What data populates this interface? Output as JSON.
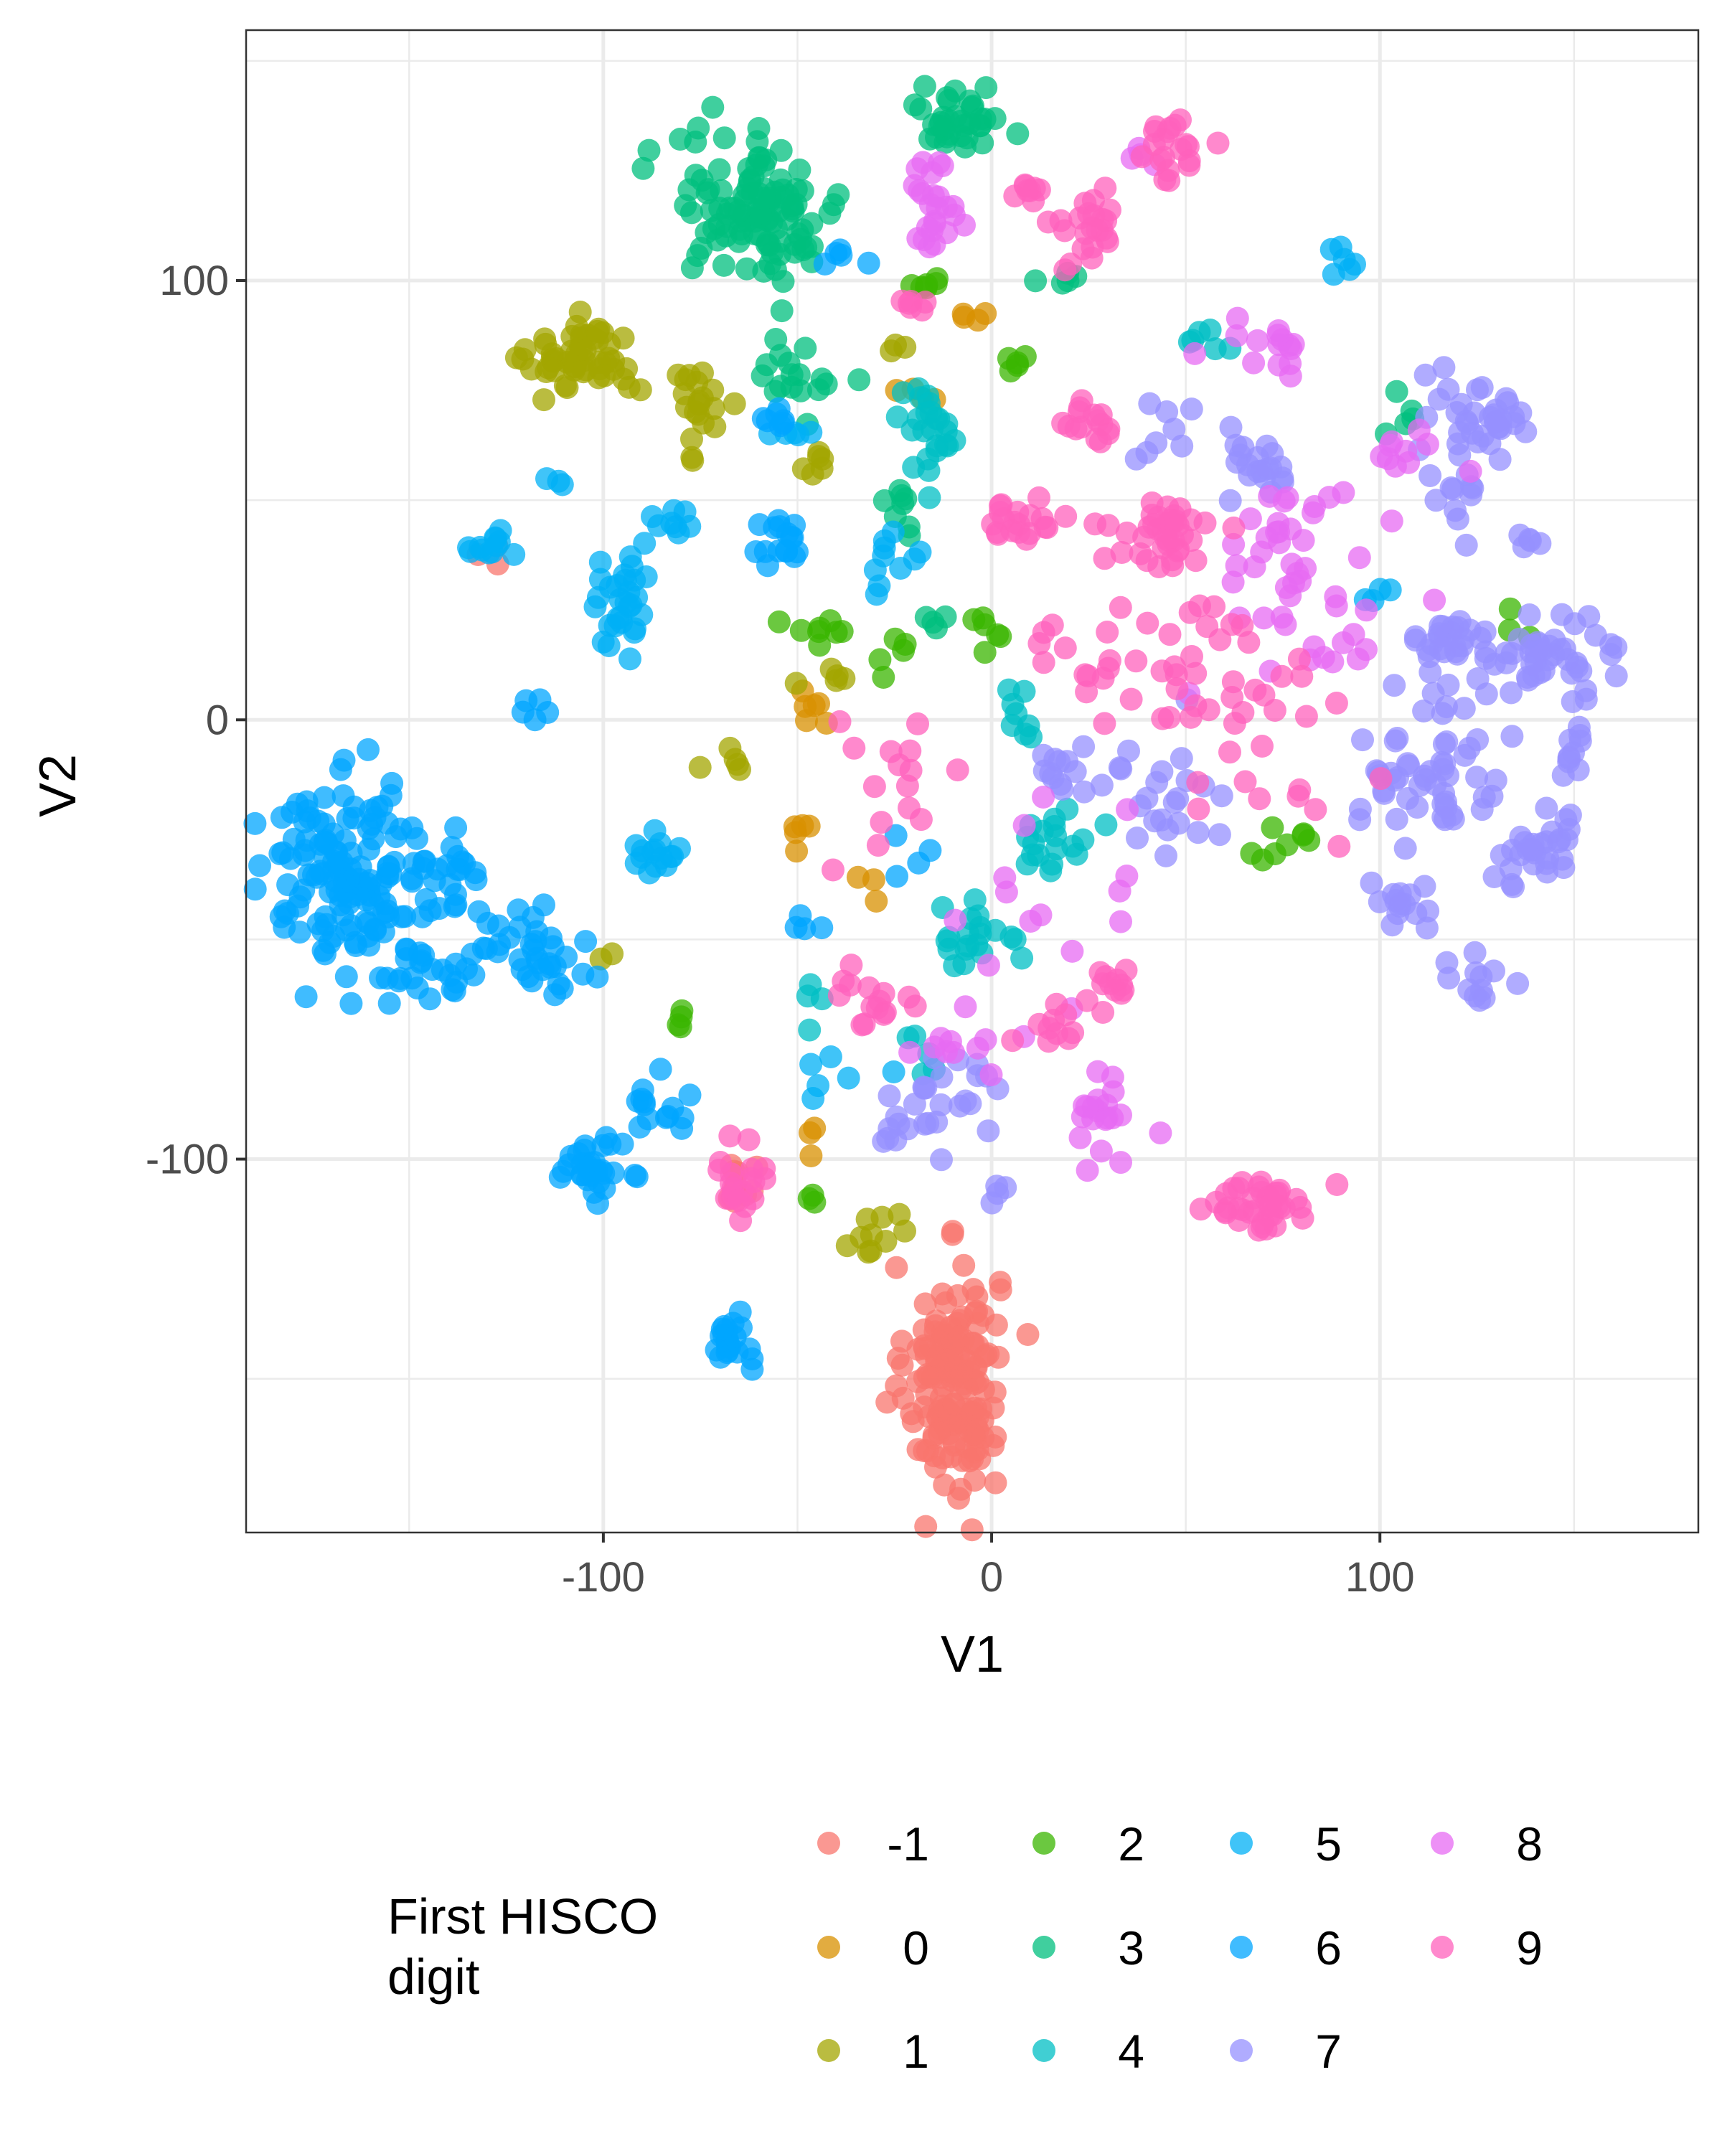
{
  "chart_data": {
    "type": "scatter",
    "title": "",
    "xlabel": "V1",
    "ylabel": "V2",
    "xlim": [
      -192,
      182
    ],
    "ylim": [
      -185,
      157
    ],
    "xticks": [
      -100,
      0,
      100
    ],
    "yticks": [
      -100,
      0,
      100
    ],
    "xtick_labels": [
      "-100",
      "0",
      "100"
    ],
    "ytick_labels": [
      "-100",
      "0",
      "100"
    ],
    "grid": true,
    "point_alpha": 0.75,
    "legend": {
      "title": "First HISCO digit",
      "position": "bottom",
      "columns": 4,
      "items": [
        {
          "label": "-1",
          "color": "#F8766D"
        },
        {
          "label": "0",
          "color": "#D89000"
        },
        {
          "label": "1",
          "color": "#A3A500"
        },
        {
          "label": "2",
          "color": "#39B600"
        },
        {
          "label": "3",
          "color": "#00BF7D"
        },
        {
          "label": "4",
          "color": "#00BFC4"
        },
        {
          "label": "5",
          "color": "#00B0F6"
        },
        {
          "label": "6",
          "color": "#00A5FF"
        },
        {
          "label": "7",
          "color": "#9590FF"
        },
        {
          "label": "8",
          "color": "#E76BF3"
        },
        {
          "label": "9",
          "color": "#FF62BC"
        }
      ]
    },
    "clusters": [
      {
        "category": "-1",
        "center": [
          -10,
          -150
        ],
        "spread": [
          6,
          13
        ],
        "n": 170
      },
      {
        "category": "-1",
        "center": [
          -65,
          -105
        ],
        "spread": [
          3,
          3
        ],
        "n": 12
      },
      {
        "category": "-1",
        "center": [
          -130,
          37
        ],
        "spread": [
          2,
          2
        ],
        "n": 3
      },
      {
        "category": "0",
        "center": [
          -5,
          92
        ],
        "spread": [
          2,
          1
        ],
        "n": 4
      },
      {
        "category": "0",
        "center": [
          -48,
          3
        ],
        "spread": [
          5,
          4
        ],
        "n": 6
      },
      {
        "category": "0",
        "center": [
          -48,
          -25
        ],
        "spread": [
          3,
          4
        ],
        "n": 5
      },
      {
        "category": "0",
        "center": [
          -20,
          75
        ],
        "spread": [
          3,
          2
        ],
        "n": 4
      },
      {
        "category": "0",
        "center": [
          -45,
          -95
        ],
        "spread": [
          2,
          2
        ],
        "n": 3
      },
      {
        "category": "0",
        "center": [
          -30,
          -37
        ],
        "spread": [
          3,
          3
        ],
        "n": 3
      },
      {
        "category": "1",
        "center": [
          -105,
          82
        ],
        "spread": [
          7,
          4
        ],
        "n": 55
      },
      {
        "category": "1",
        "center": [
          -75,
          75
        ],
        "spread": [
          4,
          3
        ],
        "n": 12
      },
      {
        "category": "1",
        "center": [
          -75,
          65
        ],
        "spread": [
          3,
          3
        ],
        "n": 8
      },
      {
        "category": "1",
        "center": [
          -30,
          -118
        ],
        "spread": [
          3,
          5
        ],
        "n": 10
      },
      {
        "category": "1",
        "center": [
          -45,
          60
        ],
        "spread": [
          2,
          3
        ],
        "n": 6
      },
      {
        "category": "1",
        "center": [
          -65,
          -10
        ],
        "spread": [
          4,
          3
        ],
        "n": 5
      },
      {
        "category": "1",
        "center": [
          -40,
          10
        ],
        "spread": [
          4,
          2
        ],
        "n": 5
      },
      {
        "category": "1",
        "center": [
          -100,
          -53
        ],
        "spread": [
          2,
          2
        ],
        "n": 2
      },
      {
        "category": "1",
        "center": [
          -25,
          85
        ],
        "spread": [
          2,
          2
        ],
        "n": 3
      },
      {
        "category": "2",
        "center": [
          -45,
          20
        ],
        "spread": [
          4,
          3
        ],
        "n": 8
      },
      {
        "category": "2",
        "center": [
          -15,
          100
        ],
        "spread": [
          3,
          2
        ],
        "n": 6
      },
      {
        "category": "2",
        "center": [
          0,
          20
        ],
        "spread": [
          3,
          3
        ],
        "n": 6
      },
      {
        "category": "2",
        "center": [
          5,
          80
        ],
        "spread": [
          3,
          2
        ],
        "n": 5
      },
      {
        "category": "2",
        "center": [
          75,
          -27
        ],
        "spread": [
          5,
          3
        ],
        "n": 8
      },
      {
        "category": "2",
        "center": [
          -80,
          -70
        ],
        "spread": [
          2,
          2
        ],
        "n": 4
      },
      {
        "category": "2",
        "center": [
          -25,
          15
        ],
        "spread": [
          4,
          3
        ],
        "n": 5
      },
      {
        "category": "2",
        "center": [
          -47,
          -110
        ],
        "spread": [
          2,
          1
        ],
        "n": 3
      },
      {
        "category": "2",
        "center": [
          135,
          20
        ],
        "spread": [
          3,
          2
        ],
        "n": 3
      },
      {
        "category": "3",
        "center": [
          -60,
          117
        ],
        "spread": [
          11,
          8
        ],
        "n": 110
      },
      {
        "category": "3",
        "center": [
          -8,
          137
        ],
        "spread": [
          5,
          4
        ],
        "n": 35
      },
      {
        "category": "3",
        "center": [
          -50,
          78
        ],
        "spread": [
          6,
          5
        ],
        "n": 18
      },
      {
        "category": "3",
        "center": [
          -25,
          47
        ],
        "spread": [
          4,
          4
        ],
        "n": 8
      },
      {
        "category": "3",
        "center": [
          20,
          100
        ],
        "spread": [
          3,
          2
        ],
        "n": 5
      },
      {
        "category": "3",
        "center": [
          105,
          70
        ],
        "spread": [
          3,
          3
        ],
        "n": 5
      },
      {
        "category": "3",
        "center": [
          -15,
          20
        ],
        "spread": [
          3,
          3
        ],
        "n": 4
      },
      {
        "category": "4",
        "center": [
          -15,
          67
        ],
        "spread": [
          5,
          5
        ],
        "n": 25
      },
      {
        "category": "4",
        "center": [
          15,
          -28
        ],
        "spread": [
          5,
          4
        ],
        "n": 18
      },
      {
        "category": "4",
        "center": [
          -5,
          -48
        ],
        "spread": [
          6,
          4
        ],
        "n": 20
      },
      {
        "category": "4",
        "center": [
          7,
          2
        ],
        "spread": [
          2,
          3
        ],
        "n": 8
      },
      {
        "category": "4",
        "center": [
          55,
          86
        ],
        "spread": [
          3,
          2
        ],
        "n": 6
      },
      {
        "category": "4",
        "center": [
          -20,
          -75
        ],
        "spread": [
          3,
          3
        ],
        "n": 5
      },
      {
        "category": "4",
        "center": [
          -45,
          -65
        ],
        "spread": [
          3,
          3
        ],
        "n": 4
      },
      {
        "category": "5",
        "center": [
          -95,
          25
        ],
        "spread": [
          4,
          6
        ],
        "n": 30
      },
      {
        "category": "5",
        "center": [
          -130,
          40
        ],
        "spread": [
          3,
          2
        ],
        "n": 12
      },
      {
        "category": "5",
        "center": [
          -85,
          -30
        ],
        "spread": [
          4,
          3
        ],
        "n": 15
      },
      {
        "category": "5",
        "center": [
          -82,
          45
        ],
        "spread": [
          3,
          2
        ],
        "n": 8
      },
      {
        "category": "5",
        "center": [
          -25,
          36
        ],
        "spread": [
          3,
          3
        ],
        "n": 10
      },
      {
        "category": "5",
        "center": [
          90,
          105
        ],
        "spread": [
          2,
          2
        ],
        "n": 6
      },
      {
        "category": "5",
        "center": [
          -112,
          54
        ],
        "spread": [
          2,
          1
        ],
        "n": 3
      },
      {
        "category": "5",
        "center": [
          -50,
          67
        ],
        "spread": [
          4,
          3
        ],
        "n": 6
      },
      {
        "category": "5",
        "center": [
          97,
          29
        ],
        "spread": [
          2,
          2
        ],
        "n": 4
      },
      {
        "category": "5",
        "center": [
          -35,
          -80
        ],
        "spread": [
          6,
          6
        ],
        "n": 6
      },
      {
        "category": "6",
        "center": [
          -165,
          -35
        ],
        "spread": [
          12,
          10
        ],
        "n": 150
      },
      {
        "category": "6",
        "center": [
          -138,
          -35
        ],
        "spread": [
          4,
          4
        ],
        "n": 15
      },
      {
        "category": "6",
        "center": [
          -122,
          -50
        ],
        "spread": [
          6,
          5
        ],
        "n": 22
      },
      {
        "category": "6",
        "center": [
          -112,
          -58
        ],
        "spread": [
          4,
          4
        ],
        "n": 16
      },
      {
        "category": "6",
        "center": [
          -150,
          -60
        ],
        "spread": [
          8,
          4
        ],
        "n": 20
      },
      {
        "category": "6",
        "center": [
          -103,
          -102
        ],
        "spread": [
          4,
          3
        ],
        "n": 30
      },
      {
        "category": "6",
        "center": [
          -67,
          -141
        ],
        "spread": [
          3,
          3
        ],
        "n": 22
      },
      {
        "category": "6",
        "center": [
          -88,
          -89
        ],
        "spread": [
          4,
          4
        ],
        "n": 14
      },
      {
        "category": "6",
        "center": [
          -55,
          40
        ],
        "spread": [
          4,
          4
        ],
        "n": 16
      },
      {
        "category": "6",
        "center": [
          -118,
          3
        ],
        "spread": [
          3,
          2
        ],
        "n": 5
      },
      {
        "category": "6",
        "center": [
          -55,
          65
        ],
        "spread": [
          4,
          3
        ],
        "n": 6
      },
      {
        "category": "6",
        "center": [
          -40,
          105
        ],
        "spread": [
          4,
          2
        ],
        "n": 5
      },
      {
        "category": "6",
        "center": [
          -45,
          -47
        ],
        "spread": [
          3,
          3
        ],
        "n": 4
      },
      {
        "category": "6",
        "center": [
          -20,
          -30
        ],
        "spread": [
          3,
          3
        ],
        "n": 4
      },
      {
        "category": "7",
        "center": [
          145,
          15
        ],
        "spread": [
          8,
          4
        ],
        "n": 45
      },
      {
        "category": "7",
        "center": [
          118,
          17
        ],
        "spread": [
          5,
          4
        ],
        "n": 25
      },
      {
        "category": "7",
        "center": [
          125,
          70
        ],
        "spread": [
          6,
          5
        ],
        "n": 35
      },
      {
        "category": "7",
        "center": [
          115,
          -10
        ],
        "spread": [
          10,
          8
        ],
        "n": 55
      },
      {
        "category": "7",
        "center": [
          140,
          -30
        ],
        "spread": [
          6,
          5
        ],
        "n": 30
      },
      {
        "category": "7",
        "center": [
          125,
          -60
        ],
        "spread": [
          4,
          3
        ],
        "n": 12
      },
      {
        "category": "7",
        "center": [
          105,
          -42
        ],
        "spread": [
          5,
          3
        ],
        "n": 15
      },
      {
        "category": "7",
        "center": [
          70,
          58
        ],
        "spread": [
          5,
          4
        ],
        "n": 20
      },
      {
        "category": "7",
        "center": [
          150,
          -8
        ],
        "spread": [
          2,
          4
        ],
        "n": 10
      },
      {
        "category": "7",
        "center": [
          -10,
          -85
        ],
        "spread": [
          6,
          5
        ],
        "n": 20
      },
      {
        "category": "7",
        "center": [
          -25,
          -95
        ],
        "spread": [
          4,
          3
        ],
        "n": 8
      },
      {
        "category": "7",
        "center": [
          20,
          -12
        ],
        "spread": [
          8,
          3
        ],
        "n": 15
      },
      {
        "category": "7",
        "center": [
          45,
          -22
        ],
        "spread": [
          8,
          8
        ],
        "n": 20
      },
      {
        "category": "7",
        "center": [
          120,
          52
        ],
        "spread": [
          4,
          4
        ],
        "n": 12
      },
      {
        "category": "7",
        "center": [
          140,
          40
        ],
        "spread": [
          2,
          2
        ],
        "n": 5
      },
      {
        "category": "7",
        "center": [
          45,
          65
        ],
        "spread": [
          4,
          4
        ],
        "n": 8
      },
      {
        "category": "7",
        "center": [
          0,
          -107
        ],
        "spread": [
          2,
          2
        ],
        "n": 4
      },
      {
        "category": "8",
        "center": [
          -15,
          117
        ],
        "spread": [
          4,
          6
        ],
        "n": 25
      },
      {
        "category": "8",
        "center": [
          75,
          40
        ],
        "spread": [
          8,
          8
        ],
        "n": 30
      },
      {
        "category": "8",
        "center": [
          90,
          20
        ],
        "spread": [
          10,
          5
        ],
        "n": 15
      },
      {
        "category": "8",
        "center": [
          30,
          -90
        ],
        "spread": [
          5,
          5
        ],
        "n": 20
      },
      {
        "category": "8",
        "center": [
          73,
          86
        ],
        "spread": [
          5,
          3
        ],
        "n": 15
      },
      {
        "category": "8",
        "center": [
          40,
          128
        ],
        "spread": [
          2,
          2
        ],
        "n": 4
      },
      {
        "category": "8",
        "center": [
          105,
          55
        ],
        "spread": [
          6,
          4
        ],
        "n": 12
      },
      {
        "category": "8",
        "center": [
          -10,
          -75
        ],
        "spread": [
          8,
          3
        ],
        "n": 10
      },
      {
        "category": "8",
        "center": [
          0,
          -45
        ],
        "spread": [
          20,
          20
        ],
        "n": 15
      },
      {
        "category": "9",
        "center": [
          45,
          42
        ],
        "spread": [
          7,
          4
        ],
        "n": 40
      },
      {
        "category": "9",
        "center": [
          70,
          -110
        ],
        "spread": [
          6,
          3
        ],
        "n": 40
      },
      {
        "category": "9",
        "center": [
          45,
          130
        ],
        "spread": [
          5,
          4
        ],
        "n": 20
      },
      {
        "category": "9",
        "center": [
          25,
          112
        ],
        "spread": [
          6,
          6
        ],
        "n": 25
      },
      {
        "category": "9",
        "center": [
          5,
          45
        ],
        "spread": [
          6,
          3
        ],
        "n": 20
      },
      {
        "category": "9",
        "center": [
          -65,
          -105
        ],
        "spread": [
          4,
          4
        ],
        "n": 20
      },
      {
        "category": "9",
        "center": [
          25,
          67
        ],
        "spread": [
          4,
          3
        ],
        "n": 15
      },
      {
        "category": "9",
        "center": [
          30,
          -60
        ],
        "spread": [
          4,
          3
        ],
        "n": 12
      },
      {
        "category": "9",
        "center": [
          -20,
          95
        ],
        "spread": [
          3,
          2
        ],
        "n": 6
      },
      {
        "category": "9",
        "center": [
          10,
          120
        ],
        "spread": [
          3,
          2
        ],
        "n": 6
      },
      {
        "category": "9",
        "center": [
          -30,
          -65
        ],
        "spread": [
          5,
          5
        ],
        "n": 15
      },
      {
        "category": "9",
        "center": [
          15,
          -70
        ],
        "spread": [
          3,
          3
        ],
        "n": 10
      },
      {
        "category": "9",
        "center": [
          30,
          15
        ],
        "spread": [
          15,
          10
        ],
        "n": 20
      },
      {
        "category": "9",
        "center": [
          65,
          -5
        ],
        "spread": [
          15,
          15
        ],
        "n": 25
      },
      {
        "category": "9",
        "center": [
          -25,
          -10
        ],
        "spread": [
          8,
          15
        ],
        "n": 15
      },
      {
        "category": "9",
        "center": [
          60,
          10
        ],
        "spread": [
          10,
          10
        ],
        "n": 15
      }
    ]
  }
}
